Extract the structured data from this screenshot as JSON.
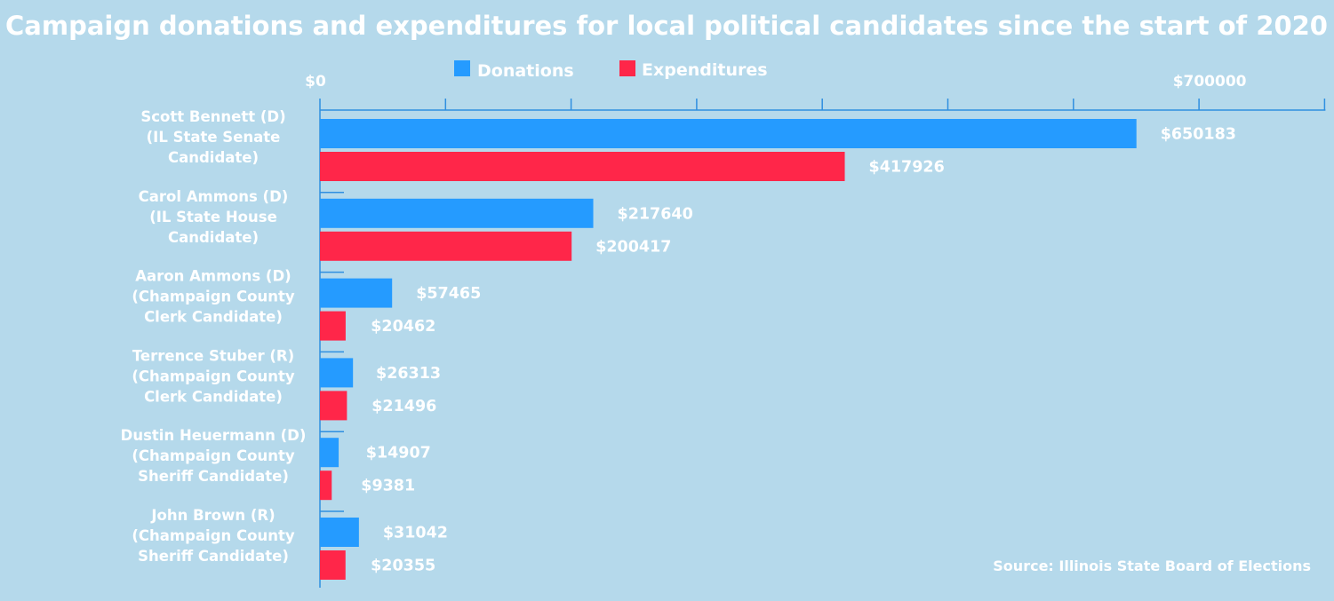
{
  "chart_data": {
    "type": "bar",
    "orientation": "horizontal",
    "title": "Campaign donations and expenditures for local political candidates since the start of 2020",
    "categories": [
      [
        "Scott Bennett (D)",
        "(IL State Senate",
        "Candidate)"
      ],
      [
        "Carol Ammons (D)",
        "(IL State House",
        "Candidate)"
      ],
      [
        "Aaron Ammons (D)",
        "(Champaign County",
        "Clerk Candidate)"
      ],
      [
        "Terrence Stuber (R)",
        "(Champaign County",
        "Clerk Candidate)"
      ],
      [
        "Dustin Heuermann (D)",
        "(Champaign County",
        "Sheriff Candidate)"
      ],
      [
        "John Brown (R)",
        "(Champaign County",
        "Sheriff Candidate)"
      ]
    ],
    "series": [
      {
        "name": "Donations",
        "color": "#259bff",
        "values": [
          650183,
          217640,
          57465,
          26313,
          14907,
          31042
        ],
        "labels": [
          "$650183",
          "$217640",
          "$57465",
          "$26313",
          "$14907",
          "$31042"
        ]
      },
      {
        "name": "Expenditures",
        "color": "#ff2649",
        "values": [
          417926,
          200417,
          20462,
          21496,
          9381,
          20355
        ],
        "labels": [
          "$417926",
          "$200417",
          "$20462",
          "$21496",
          "$9381",
          "$20355"
        ]
      }
    ],
    "xlim": [
      0,
      800000
    ],
    "tick_labels": [
      {
        "value": 0,
        "label": "$0"
      },
      {
        "value": 700000,
        "label": "$700000"
      }
    ],
    "tick_values": [
      0,
      100000,
      200000,
      300000,
      400000,
      500000,
      600000,
      700000,
      800000
    ],
    "legend_position": "top-center",
    "grid": false,
    "source": "Source: Illinois State Board of Elections"
  }
}
